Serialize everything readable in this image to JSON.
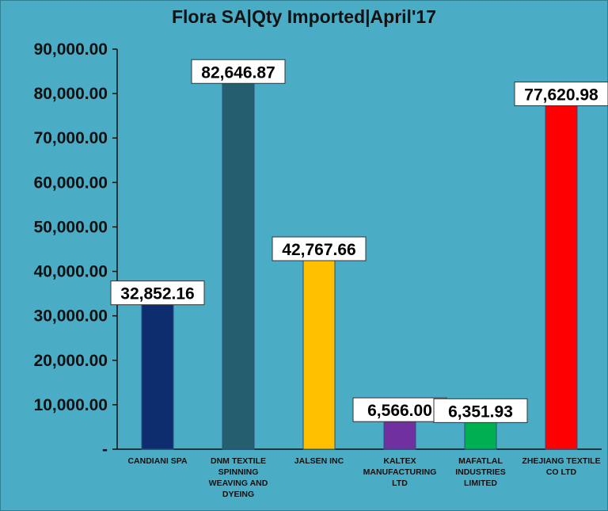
{
  "chart_data": {
    "type": "bar",
    "title": "Flora SA|Qty Imported|April'17",
    "xlabel": "",
    "ylabel": "",
    "ylim": [
      0,
      90000
    ],
    "yticks": [
      0,
      10000,
      20000,
      30000,
      40000,
      50000,
      60000,
      70000,
      80000,
      90000
    ],
    "ytick_labels": [
      "-",
      "10,000.00",
      "20,000.00",
      "30,000.00",
      "40,000.00",
      "50,000.00",
      "60,000.00",
      "70,000.00",
      "80,000.00",
      "90,000.00"
    ],
    "grid": false,
    "categories": [
      "CANDIANI SPA",
      "DNM TEXTILE SPINNING WEAVING AND DYEING",
      "JALSEN INC",
      "KALTEX MANUFACTURING LTD",
      "MAFATLAL INDUSTRIES LIMITED",
      "ZHEJIANG TEXTILE CO LTD"
    ],
    "category_lines": [
      [
        "CANDIANI SPA"
      ],
      [
        "DNM TEXTILE",
        "SPINNING",
        "WEAVING AND",
        "DYEING"
      ],
      [
        "JALSEN INC"
      ],
      [
        "KALTEX",
        "MANUFACTURING",
        "LTD"
      ],
      [
        "MAFATLAL",
        "INDUSTRIES",
        "LIMITED"
      ],
      [
        "ZHEJIANG TEXTILE",
        "CO LTD"
      ]
    ],
    "values": [
      32852.16,
      82646.87,
      42767.66,
      6566.0,
      6351.93,
      77620.98
    ],
    "data_labels": [
      "32,852.16",
      "82,646.87",
      "42,767.66",
      "6,566.00",
      "6,351.93",
      "77,620.98"
    ],
    "colors": [
      "#0d2d6e",
      "#255e6e",
      "#ffc000",
      "#7030a0",
      "#00b050",
      "#ff0000"
    ]
  }
}
